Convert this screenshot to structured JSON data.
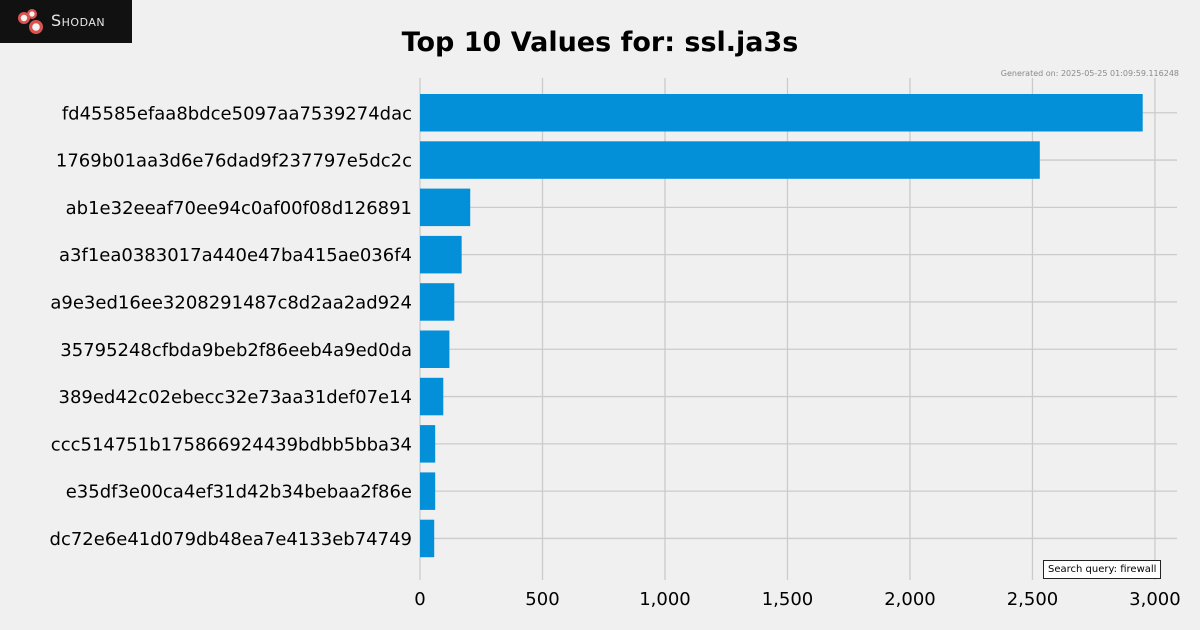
{
  "logo": {
    "text": "Shodan",
    "icon": "shodan-logo-icon",
    "background": "#111111",
    "icon_color": "#d9534f"
  },
  "title": "Top 10 Values for: ssl.ja3s",
  "generated": "Generated on: 2025-05-25 01:09:59.116248",
  "search_query": "Search query: firewall",
  "colors": {
    "bar": "#0390d8",
    "grid": "#cbcbcb",
    "background": "#f0f0f0"
  },
  "chart_data": {
    "type": "bar",
    "orientation": "horizontal",
    "title": "Top 10 Values for: ssl.ja3s",
    "categories": [
      "fd45585efaa8bdce5097aa7539274dac",
      "1769b01aa3d6e76dad9f237797e5dc2c",
      "ab1e32eeaf70ee94c0af00f08d126891",
      "a3f1ea0383017a440e47ba415ae036f4",
      "a9e3ed16ee3208291487c8d2aa2ad924",
      "35795248cfbda9beb2f86eeb4a9ed0da",
      "389ed42c02ebecc32e73aa31def07e14",
      "ccc514751b175866924439bdbb5bba34",
      "e35df3e00ca4ef31d42b34bebaa2f86e",
      "dc72e6e41d079db48ea7e4133eb74749"
    ],
    "values": [
      2950,
      2530,
      205,
      170,
      140,
      120,
      95,
      62,
      62,
      58
    ],
    "xlim": [
      0,
      3090
    ],
    "xticks": [
      0,
      500,
      1000,
      1500,
      2000,
      2500,
      3000
    ],
    "xtick_labels": [
      "0",
      "500",
      "1,000",
      "1,500",
      "2,000",
      "2,500",
      "3,000"
    ],
    "xlabel": "",
    "ylabel": "",
    "grid": true,
    "legend": "none"
  }
}
